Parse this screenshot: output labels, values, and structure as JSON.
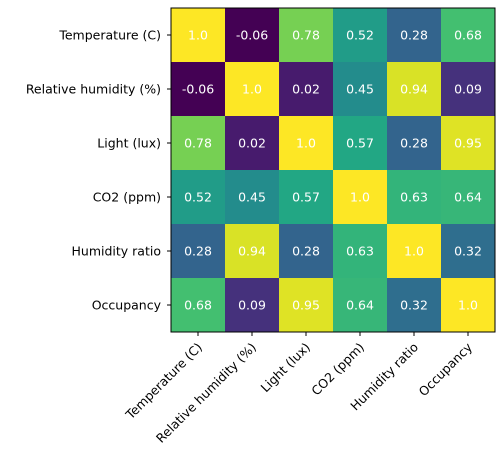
{
  "chart_data": {
    "type": "heatmap",
    "title": "",
    "xlabel": "",
    "ylabel": "",
    "labels": [
      "Temperature (C)",
      "Relative humidity (%)",
      "Light (lux)",
      "CO2 (ppm)",
      "Humidity ratio",
      "Occupancy"
    ],
    "matrix": [
      [
        1.0,
        -0.06,
        0.78,
        0.52,
        0.28,
        0.68
      ],
      [
        -0.06,
        1.0,
        0.02,
        0.45,
        0.94,
        0.09
      ],
      [
        0.78,
        0.02,
        1.0,
        0.57,
        0.28,
        0.95
      ],
      [
        0.52,
        0.45,
        0.57,
        1.0,
        0.63,
        0.64
      ],
      [
        0.28,
        0.94,
        0.28,
        0.63,
        1.0,
        0.32
      ],
      [
        0.68,
        0.09,
        0.95,
        0.64,
        0.32,
        1.0
      ]
    ],
    "cell_text": [
      [
        "1.0",
        "-0.06",
        "0.78",
        "0.52",
        "0.28",
        "0.68"
      ],
      [
        "-0.06",
        "1.0",
        "0.02",
        "0.45",
        "0.94",
        "0.09"
      ],
      [
        "0.78",
        "0.02",
        "1.0",
        "0.57",
        "0.28",
        "0.95"
      ],
      [
        "0.52",
        "0.45",
        "0.57",
        "1.0",
        "0.63",
        "0.64"
      ],
      [
        "0.28",
        "0.94",
        "0.28",
        "0.63",
        "1.0",
        "0.32"
      ],
      [
        "0.68",
        "0.09",
        "0.95",
        "0.64",
        "0.32",
        "1.0"
      ]
    ],
    "colormap": "viridis",
    "value_range": [
      -0.06,
      1.0
    ],
    "x_tick_rotation": 45,
    "grid": false,
    "legend": "none"
  }
}
